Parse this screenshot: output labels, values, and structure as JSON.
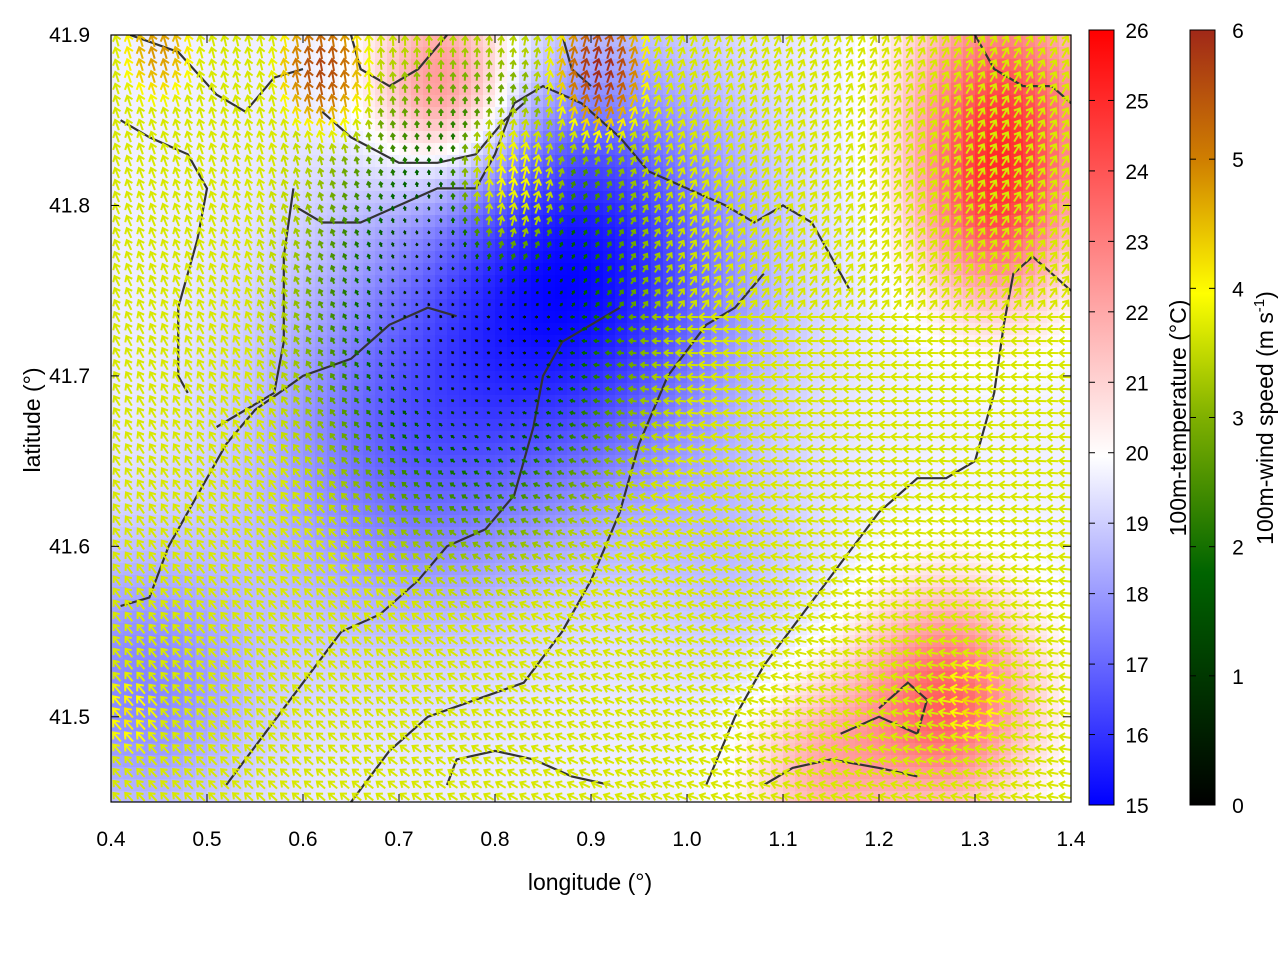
{
  "chart_data": {
    "type": "heatmap",
    "title": "",
    "xlabel": "longitude (°)",
    "ylabel": "latitude (°)",
    "xlim": [
      0.4,
      1.4
    ],
    "ylim": [
      41.45,
      41.9
    ],
    "xticks": [
      "0.4",
      "0.5",
      "0.6",
      "0.7",
      "0.8",
      "0.9",
      "1.0",
      "1.1",
      "1.2",
      "1.3",
      "1.4"
    ],
    "yticks": [
      "41.5",
      "41.6",
      "41.7",
      "41.8",
      "41.9"
    ],
    "grid": false,
    "temperature_colorbar": {
      "label": "100m-temperature (°C)",
      "range": [
        15,
        26
      ],
      "ticks": [
        "15",
        "16",
        "17",
        "18",
        "19",
        "20",
        "21",
        "22",
        "23",
        "24",
        "25",
        "26"
      ],
      "colors": [
        "#0000ff",
        "#ffffff",
        "#ff0000"
      ]
    },
    "wind_colorbar": {
      "label_main": "100m-wind speed (m s",
      "label_sup": "-1",
      "label_end": ")",
      "range": [
        0,
        6
      ],
      "ticks": [
        "0",
        "1",
        "2",
        "3",
        "4",
        "5",
        "6"
      ],
      "colors": [
        "#000000",
        "#006400",
        "#b0d000",
        "#ffff00",
        "#d08000",
        "#a02818"
      ]
    },
    "temperature_field": {
      "background": 20.0,
      "features": [
        {
          "lon": 0.89,
          "lat": 41.76,
          "value": 15.4,
          "spread": 0.17
        },
        {
          "lon": 0.7,
          "lat": 41.66,
          "value": 17.5,
          "spread": 0.16
        },
        {
          "lon": 0.43,
          "lat": 41.52,
          "value": 17.8,
          "spread": 0.12
        },
        {
          "lon": 0.75,
          "lat": 41.87,
          "value": 23.5,
          "spread": 0.08
        },
        {
          "lon": 1.33,
          "lat": 41.86,
          "value": 24.0,
          "spread": 0.1
        },
        {
          "lon": 1.32,
          "lat": 41.79,
          "value": 22.8,
          "spread": 0.08
        },
        {
          "lon": 1.27,
          "lat": 41.51,
          "value": 23.8,
          "spread": 0.09
        },
        {
          "lon": 1.14,
          "lat": 41.47,
          "value": 22.0,
          "spread": 0.08
        },
        {
          "lon": 1.05,
          "lat": 41.58,
          "value": 19.2,
          "spread": 0.1
        }
      ]
    },
    "wind_field": {
      "calm_center": {
        "lon": 0.78,
        "lat": 41.74
      },
      "calm_radius": 0.16,
      "strong_areas": [
        {
          "lon": 0.42,
          "lat": 41.5,
          "speed": 3.8
        },
        {
          "lon": 0.62,
          "lat": 41.88,
          "speed": 5.6
        },
        {
          "lon": 0.91,
          "lat": 41.88,
          "speed": 6.0
        },
        {
          "lon": 0.45,
          "lat": 41.89,
          "speed": 4.6
        },
        {
          "lon": 1.3,
          "lat": 41.51,
          "speed": 4.0
        },
        {
          "lon": 0.82,
          "lat": 41.82,
          "speed": 3.6
        }
      ]
    },
    "contours": [
      [
        [
          0.42,
          41.9
        ],
        [
          0.47,
          41.89
        ],
        [
          0.51,
          41.865
        ],
        [
          0.54,
          41.855
        ],
        [
          0.57,
          41.875
        ],
        [
          0.6,
          41.88
        ]
      ],
      [
        [
          0.65,
          41.9
        ],
        [
          0.66,
          41.88
        ],
        [
          0.69,
          41.87
        ],
        [
          0.72,
          41.88
        ],
        [
          0.75,
          41.9
        ]
      ],
      [
        [
          0.62,
          41.855
        ],
        [
          0.65,
          41.84
        ],
        [
          0.7,
          41.825
        ],
        [
          0.74,
          41.825
        ],
        [
          0.78,
          41.83
        ],
        [
          0.81,
          41.85
        ],
        [
          0.83,
          41.86
        ]
      ],
      [
        [
          0.41,
          41.85
        ],
        [
          0.44,
          41.84
        ],
        [
          0.48,
          41.83
        ],
        [
          0.5,
          41.81
        ],
        [
          0.49,
          41.78
        ],
        [
          0.47,
          41.74
        ],
        [
          0.47,
          41.7
        ],
        [
          0.48,
          41.69
        ]
      ],
      [
        [
          0.59,
          41.81
        ],
        [
          0.58,
          41.77
        ],
        [
          0.58,
          41.72
        ],
        [
          0.57,
          41.69
        ],
        [
          0.54,
          41.68
        ],
        [
          0.51,
          41.67
        ]
      ],
      [
        [
          0.41,
          41.565
        ],
        [
          0.44,
          41.57
        ],
        [
          0.46,
          41.6
        ],
        [
          0.49,
          41.63
        ],
        [
          0.52,
          41.66
        ],
        [
          0.55,
          41.68
        ],
        [
          0.6,
          41.7
        ],
        [
          0.65,
          41.71
        ],
        [
          0.69,
          41.73
        ],
        [
          0.73,
          41.74
        ],
        [
          0.76,
          41.735
        ]
      ],
      [
        [
          0.59,
          41.8
        ],
        [
          0.62,
          41.79
        ],
        [
          0.66,
          41.79
        ],
        [
          0.7,
          41.8
        ],
        [
          0.74,
          41.81
        ],
        [
          0.78,
          41.81
        ],
        [
          0.8,
          41.83
        ],
        [
          0.82,
          41.86
        ],
        [
          0.85,
          41.87
        ],
        [
          0.89,
          41.86
        ],
        [
          0.93,
          41.84
        ],
        [
          0.96,
          41.82
        ],
        [
          1.0,
          41.81
        ],
        [
          1.04,
          41.8
        ],
        [
          1.07,
          41.79
        ],
        [
          1.1,
          41.8
        ],
        [
          1.13,
          41.79
        ],
        [
          1.15,
          41.77
        ],
        [
          1.17,
          41.75
        ]
      ],
      [
        [
          0.87,
          41.9
        ],
        [
          0.88,
          41.88
        ],
        [
          0.9,
          41.87
        ]
      ],
      [
        [
          1.3,
          41.9
        ],
        [
          1.32,
          41.88
        ],
        [
          1.35,
          41.87
        ],
        [
          1.38,
          41.87
        ],
        [
          1.4,
          41.86
        ]
      ],
      [
        [
          1.02,
          41.46
        ],
        [
          1.05,
          41.5
        ],
        [
          1.08,
          41.53
        ],
        [
          1.12,
          41.56
        ],
        [
          1.16,
          41.59
        ],
        [
          1.2,
          41.62
        ],
        [
          1.24,
          41.64
        ],
        [
          1.27,
          41.64
        ],
        [
          1.3,
          41.65
        ],
        [
          1.32,
          41.69
        ],
        [
          1.33,
          41.73
        ],
        [
          1.34,
          41.76
        ],
        [
          1.36,
          41.77
        ],
        [
          1.38,
          41.76
        ],
        [
          1.4,
          41.75
        ]
      ],
      [
        [
          0.65,
          41.45
        ],
        [
          0.69,
          41.48
        ],
        [
          0.73,
          41.5
        ],
        [
          0.78,
          41.51
        ],
        [
          0.83,
          41.52
        ],
        [
          0.87,
          41.55
        ],
        [
          0.9,
          41.58
        ],
        [
          0.93,
          41.62
        ],
        [
          0.95,
          41.66
        ],
        [
          0.98,
          41.7
        ],
        [
          1.02,
          41.73
        ],
        [
          1.05,
          41.74
        ],
        [
          1.08,
          41.76
        ]
      ],
      [
        [
          0.52,
          41.46
        ],
        [
          0.56,
          41.49
        ],
        [
          0.6,
          41.52
        ],
        [
          0.64,
          41.55
        ],
        [
          0.68,
          41.56
        ],
        [
          0.72,
          41.58
        ],
        [
          0.75,
          41.6
        ],
        [
          0.79,
          41.61
        ],
        [
          0.82,
          41.63
        ],
        [
          0.84,
          41.67
        ],
        [
          0.85,
          41.7
        ],
        [
          0.87,
          41.72
        ],
        [
          0.9,
          41.73
        ],
        [
          0.93,
          41.74
        ]
      ],
      [
        [
          0.75,
          41.46
        ],
        [
          0.76,
          41.475
        ],
        [
          0.8,
          41.48
        ],
        [
          0.84,
          41.475
        ],
        [
          0.88,
          41.465
        ],
        [
          0.92,
          41.46
        ]
      ],
      [
        [
          1.16,
          41.49
        ],
        [
          1.2,
          41.5
        ],
        [
          1.24,
          41.49
        ],
        [
          1.25,
          41.51
        ],
        [
          1.23,
          41.52
        ],
        [
          1.2,
          41.505
        ]
      ],
      [
        [
          1.08,
          41.46
        ],
        [
          1.11,
          41.47
        ],
        [
          1.15,
          41.475
        ],
        [
          1.2,
          41.47
        ],
        [
          1.24,
          41.465
        ]
      ]
    ]
  }
}
